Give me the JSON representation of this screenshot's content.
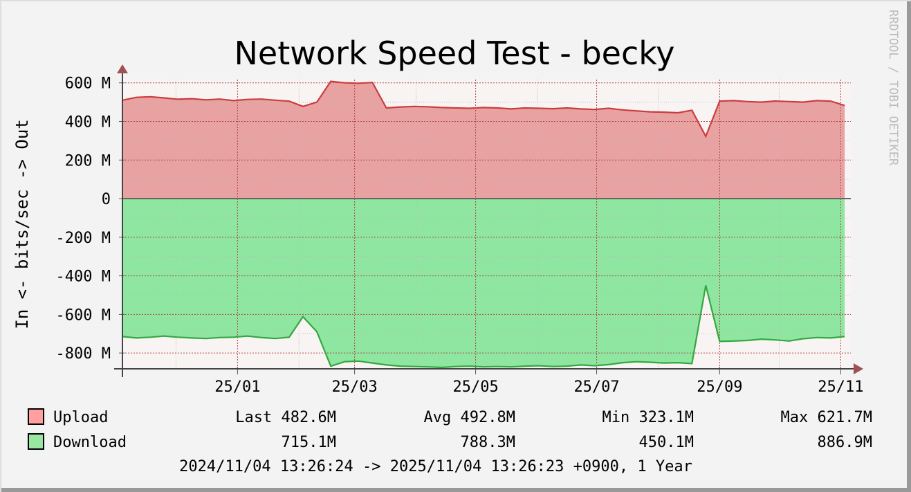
{
  "chart_data": {
    "type": "area",
    "title": "Network Speed Test - becky",
    "y_label": "In <-  bits/sec -> Out",
    "watermark": "RRDTOOL / TOBI OETIKER",
    "xlim": [
      0,
      365
    ],
    "xticks": [
      {
        "value": 58,
        "label": "25/01"
      },
      {
        "value": 117,
        "label": "25/03"
      },
      {
        "value": 178,
        "label": "25/05"
      },
      {
        "value": 239,
        "label": "25/07"
      },
      {
        "value": 301,
        "label": "25/09"
      },
      {
        "value": 362,
        "label": "25/11"
      }
    ],
    "minor_xticks": [
      27,
      89,
      148,
      209,
      270,
      331
    ],
    "ylim": [
      -882,
      617
    ],
    "yticks": [
      {
        "value": -800,
        "label": "-800 M"
      },
      {
        "value": -600,
        "label": "-600 M"
      },
      {
        "value": -400,
        "label": "-400 M"
      },
      {
        "value": -200,
        "label": "-200 M"
      },
      0,
      {
        "value": 200,
        "label": "200 M"
      },
      {
        "value": 400,
        "label": "400 M"
      },
      {
        "value": 600,
        "label": "600 M"
      }
    ],
    "minor_yticks": [
      -700,
      -500,
      -300,
      -100,
      100,
      300,
      500
    ],
    "grid": true,
    "x": [
      0,
      7,
      14,
      21,
      28,
      35,
      42,
      49,
      56,
      63,
      70,
      77,
      84,
      91,
      98,
      105,
      112,
      119,
      126,
      133,
      140,
      147,
      154,
      161,
      168,
      175,
      182,
      189,
      196,
      203,
      210,
      217,
      224,
      231,
      238,
      245,
      252,
      259,
      266,
      273,
      280,
      287,
      294,
      301,
      308,
      315,
      322,
      329,
      336,
      343,
      350,
      357,
      364
    ],
    "series": [
      {
        "name": "Upload",
        "color": "#ff9f9f",
        "area_color": "#e8a2a2",
        "line_color": "#cc3c3c",
        "values": [
          510,
          525,
          528,
          522,
          515,
          518,
          512,
          516,
          508,
          514,
          516,
          510,
          505,
          478,
          500,
          608,
          600,
          598,
          602,
          470,
          475,
          478,
          476,
          472,
          470,
          468,
          472,
          470,
          465,
          470,
          468,
          466,
          470,
          465,
          462,
          468,
          460,
          455,
          450,
          448,
          445,
          458,
          323,
          505,
          508,
          503,
          500,
          506,
          503,
          500,
          508,
          505,
          483
        ],
        "stats": [
          "Last 482.6M",
          "Avg 492.8M",
          "Min 323.1M",
          "Max 621.7M"
        ]
      },
      {
        "name": "Download",
        "color": "#99e6a3",
        "area_color": "#8ee6a0",
        "line_color": "#33a83f",
        "values": [
          -715,
          -722,
          -718,
          -712,
          -718,
          -722,
          -725,
          -720,
          -718,
          -712,
          -720,
          -725,
          -718,
          -612,
          -690,
          -868,
          -845,
          -842,
          -852,
          -862,
          -868,
          -870,
          -872,
          -875,
          -870,
          -868,
          -872,
          -870,
          -872,
          -868,
          -866,
          -870,
          -868,
          -862,
          -866,
          -860,
          -850,
          -845,
          -848,
          -852,
          -850,
          -855,
          -450,
          -740,
          -738,
          -735,
          -728,
          -732,
          -738,
          -726,
          -720,
          -722,
          -715
        ],
        "stats": [
          "715.1M",
          "788.3M",
          "450.1M",
          "886.9M"
        ]
      }
    ],
    "footer": "2024/11/04 13:26:24 -> 2025/11/04 13:26:23 +0900, 1 Year"
  }
}
